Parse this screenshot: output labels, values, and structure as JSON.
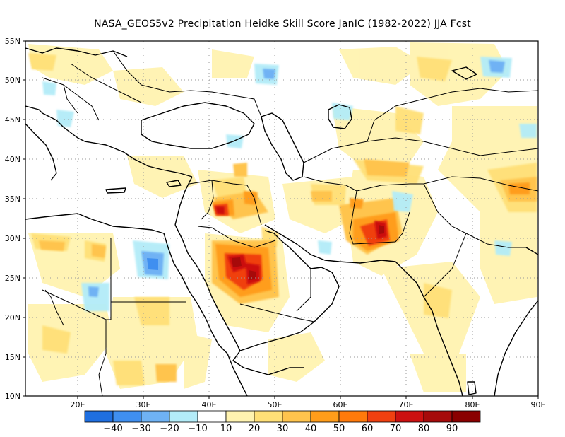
{
  "title": "NASA_GEOS5v2  Precipitation Heidke Skill Score JanIC (1982-2022) JJA Fcst",
  "map": {
    "lon_range": [
      12,
      90
    ],
    "lat_range": [
      10,
      55
    ],
    "lat_ticks": [
      "55N",
      "50N",
      "45N",
      "40N",
      "35N",
      "30N",
      "25N",
      "20N",
      "15N",
      "10N"
    ],
    "lon_ticks": [
      "20E",
      "30E",
      "40E",
      "50E",
      "60E",
      "70E",
      "80E",
      "90E"
    ],
    "grid": "dotted"
  },
  "colorbar": {
    "labels": [
      "−40",
      "−30",
      "−20",
      "−10",
      "10",
      "20",
      "30",
      "40",
      "50",
      "60",
      "70",
      "80",
      "90"
    ],
    "colors": [
      "#1f6fe0",
      "#3f8ff0",
      "#6fb2f4",
      "#b3ecf8",
      "#ffffff",
      "#fff3b0",
      "#ffe077",
      "#ffc44d",
      "#ff9d1a",
      "#ff7a0a",
      "#f04010",
      "#cc1010",
      "#a60a0a",
      "#8a0000"
    ]
  },
  "features": [
    {
      "name": "Central Saudi Arabia maximum",
      "lat": 26,
      "lon": 45,
      "hss": "70-90"
    },
    {
      "name": "Southeastern Iran / Afghanistan maximum",
      "lat": 31,
      "lon": 64,
      "hss": "60-80"
    },
    {
      "name": "Northern Iraq maximum",
      "lat": 34,
      "lon": 42,
      "hss": "50-70"
    },
    {
      "name": "Egypt negative patch",
      "lat": 27,
      "lon": 33,
      "hss": "-20 to -40"
    }
  ]
}
